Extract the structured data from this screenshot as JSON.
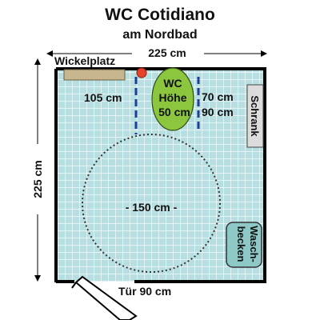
{
  "title": "WC Cotidiano",
  "subtitle": "am Nordbad",
  "labels": {
    "width_top": "225 cm",
    "height_left": "225 cm",
    "changing_table": "Wickelplatz",
    "grab_bar_left": "105 cm",
    "wc_line1": "WC",
    "wc_line2": "Höhe",
    "wc_line3": "50 cm",
    "right_dist_1": "70 cm",
    "right_dist_2": "90 cm",
    "cabinet": "Schrank",
    "turning_circle": "- 150 cm -",
    "sink_line1": "Wasch-",
    "sink_line2": "becken",
    "door": "Tür 90 cm"
  },
  "colors": {
    "floor": "#b7dfe1",
    "grid": "#ffffff",
    "wall": "#000000",
    "wc": "#8cc63f",
    "sink": "#8fc9c7",
    "table": "#c8b78e",
    "cabinet": "#dcdcdc",
    "marker": "#e8412c",
    "grab_bar": "#1f3e99"
  }
}
